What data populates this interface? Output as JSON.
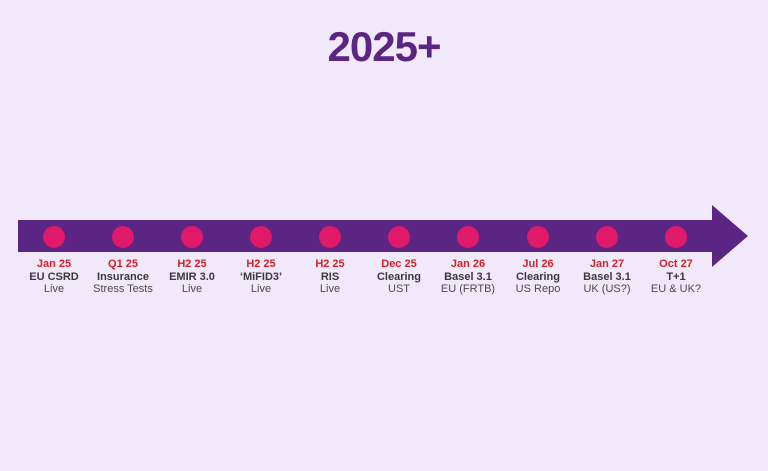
{
  "title": "2025+",
  "colors": {
    "background": "#f1e8f9",
    "title": "#5b2683",
    "arrow": "#5b2683",
    "dot": "#e0196a",
    "date": "#d6202a",
    "text": "#3a3a3a"
  },
  "milestones": [
    {
      "date": "Jan 25",
      "name": "EU CSRD",
      "status": "Live"
    },
    {
      "date": "Q1 25",
      "name": "Insurance",
      "status": "Stress Tests"
    },
    {
      "date": "H2 25",
      "name": "EMIR 3.0",
      "status": "Live"
    },
    {
      "date": "H2 25",
      "name": "‘MiFID3’",
      "status": "Live"
    },
    {
      "date": "H2 25",
      "name": "RIS",
      "status": "Live"
    },
    {
      "date": "Dec 25",
      "name": "Clearing",
      "status": "UST"
    },
    {
      "date": "Jan 26",
      "name": "Basel 3.1",
      "status": "EU (FRTB)"
    },
    {
      "date": "Jul 26",
      "name": "Clearing",
      "status": "US Repo"
    },
    {
      "date": "Jan 27",
      "name": "Basel 3.1",
      "status": "UK (US?)"
    },
    {
      "date": "Oct 27",
      "name": "T+1",
      "status": "EU & UK?"
    }
  ]
}
